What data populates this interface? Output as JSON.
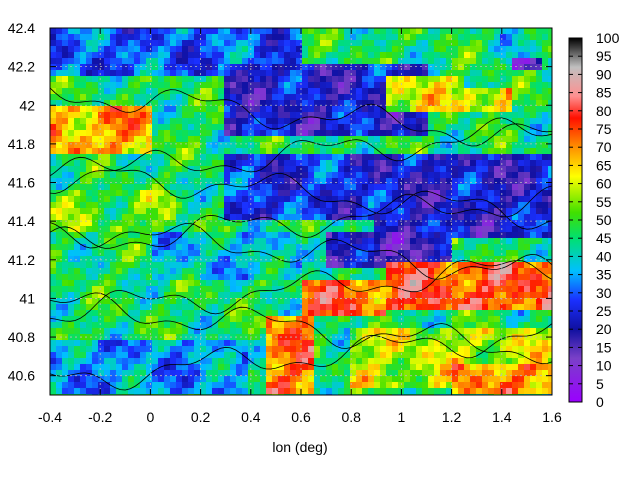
{
  "chart_data": {
    "type": "heatmap",
    "title": "",
    "xlabel": "lon (deg)",
    "ylabel": "",
    "xlim": [
      -0.4,
      1.6
    ],
    "ylim": [
      40.5,
      42.4
    ],
    "x_ticks": [
      "-0.4",
      "-0.2",
      "0",
      "0.2",
      "0.4",
      "0.6",
      "0.8",
      "1",
      "1.2",
      "1.4",
      "1.6"
    ],
    "y_ticks": [
      "40.6",
      "40.8",
      "41",
      "41.2",
      "41.4",
      "41.6",
      "41.8",
      "42",
      "42.2",
      "42.4"
    ],
    "colorbar": {
      "range": [
        0,
        100
      ],
      "ticks": [
        "0",
        "5",
        "10",
        "15",
        "20",
        "25",
        "30",
        "35",
        "40",
        "45",
        "50",
        "55",
        "60",
        "65",
        "70",
        "75",
        "80",
        "85",
        "90",
        "95",
        "100"
      ],
      "palette": [
        {
          "v": 0,
          "color": "#9a00ff"
        },
        {
          "v": 12,
          "color": "#7a40c8"
        },
        {
          "v": 20,
          "color": "#1010a0"
        },
        {
          "v": 28,
          "color": "#1a30ff"
        },
        {
          "v": 36,
          "color": "#00c0ff"
        },
        {
          "v": 45,
          "color": "#00e070"
        },
        {
          "v": 52,
          "color": "#40e000"
        },
        {
          "v": 62,
          "color": "#ffff00"
        },
        {
          "v": 70,
          "color": "#ff9000"
        },
        {
          "v": 78,
          "color": "#ff1000"
        },
        {
          "v": 84,
          "color": "#ff9090"
        },
        {
          "v": 92,
          "color": "#c0c0c0"
        },
        {
          "v": 100,
          "color": "#000000"
        }
      ]
    },
    "grid": true,
    "contours": true,
    "regions": [
      {
        "x0": -0.4,
        "x1": 1.6,
        "y0": 40.5,
        "y1": 42.4,
        "v": 46
      },
      {
        "x0": -0.4,
        "x1": 0.6,
        "y0": 42.15,
        "y1": 42.4,
        "v": 30
      },
      {
        "x0": 0.3,
        "x1": 1.1,
        "y0": 41.85,
        "y1": 42.2,
        "v": 22
      },
      {
        "x0": 0.3,
        "x1": 0.9,
        "y0": 41.4,
        "y1": 41.75,
        "v": 26
      },
      {
        "x0": 0.9,
        "x1": 1.6,
        "y0": 41.3,
        "y1": 41.75,
        "v": 22
      },
      {
        "x0": 0.7,
        "x1": 1.2,
        "y0": 41.15,
        "y1": 41.35,
        "v": 18
      },
      {
        "x0": -0.4,
        "x1": 0.0,
        "y0": 41.75,
        "y1": 42.0,
        "v": 68
      },
      {
        "x0": -0.4,
        "x1": 0.1,
        "y0": 41.35,
        "y1": 41.55,
        "v": 52
      },
      {
        "x0": 0.0,
        "x1": 0.6,
        "y0": 41.1,
        "y1": 41.35,
        "v": 38
      },
      {
        "x0": 0.6,
        "x1": 0.95,
        "y0": 40.9,
        "y1": 41.1,
        "v": 74
      },
      {
        "x0": 0.95,
        "x1": 1.6,
        "y0": 40.95,
        "y1": 41.2,
        "v": 76
      },
      {
        "x0": 0.45,
        "x1": 0.65,
        "y0": 40.5,
        "y1": 40.9,
        "v": 72
      },
      {
        "x0": 0.8,
        "x1": 1.6,
        "y0": 40.55,
        "y1": 40.85,
        "v": 58
      },
      {
        "x0": -0.4,
        "x1": 0.4,
        "y0": 40.5,
        "y1": 40.8,
        "v": 34
      },
      {
        "x0": 1.2,
        "x1": 1.6,
        "y0": 40.5,
        "y1": 40.65,
        "v": 70
      },
      {
        "x0": 1.4,
        "x1": 1.6,
        "y0": 42.2,
        "y1": 42.4,
        "v": 42
      },
      {
        "x0": 1.45,
        "x1": 1.55,
        "y0": 42.18,
        "y1": 42.26,
        "v": 12
      },
      {
        "x0": 1.25,
        "x1": 1.45,
        "y0": 41.95,
        "y1": 42.1,
        "v": 64
      },
      {
        "x0": 0.95,
        "x1": 1.25,
        "y0": 41.95,
        "y1": 42.15,
        "v": 60
      }
    ]
  }
}
